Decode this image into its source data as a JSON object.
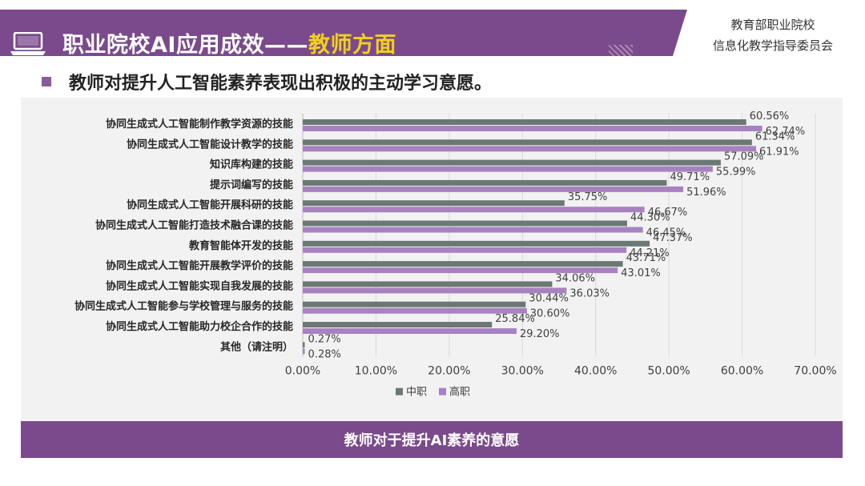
{
  "header": {
    "title_prefix": "职业院校AI应用成效——",
    "title_highlight": "教师方面",
    "org_line1": "教育部职业院校",
    "org_line2": "信息化教学指导委员会"
  },
  "subtitle": "教师对提升人工智能素养表现出积极的主动学习意愿。",
  "footer": "教师对于提升AI素养的意愿",
  "colors": {
    "primary": "#7a4a8c",
    "highlight": "#f2d01b",
    "series1": "#6b7874",
    "series2": "#a882c0"
  },
  "chart_data": {
    "type": "bar",
    "orientation": "horizontal",
    "categories": [
      "协同生成式人工智能制作教学资源的技能",
      "协同生成式人工智能设计教学的技能",
      "知识库构建的技能",
      "提示词编写的技能",
      "协同生成式人工智能开展科研的技能",
      "协同生成式人工智能打造技术融合课的技能",
      "教育智能体开发的技能",
      "协同生成式人工智能开展教学评价的技能",
      "协同生成式人工智能实现自我发展的技能",
      "协同生成式人工智能参与学校管理与服务的技能",
      "协同生成式人工智能助力校企合作的技能",
      "其他（请注明）"
    ],
    "series": [
      {
        "name": "中职",
        "values": [
          60.56,
          61.34,
          57.09,
          49.71,
          35.75,
          44.3,
          47.37,
          43.71,
          34.06,
          30.44,
          25.84,
          0.27
        ],
        "labels": [
          "60.56%",
          "61.34%",
          "57.09%",
          "49.71%",
          "35.75%",
          "44.30%",
          "47.37%",
          "43.71%",
          "34.06%",
          "30.44%",
          "25.84%",
          "0.27%"
        ]
      },
      {
        "name": "高职",
        "values": [
          62.74,
          61.91,
          55.99,
          51.96,
          46.67,
          46.45,
          44.21,
          43.01,
          36.03,
          30.6,
          29.2,
          0.28
        ],
        "labels": [
          "62.74%",
          "61.91%",
          "55.99%",
          "51.96%",
          "46.67%",
          "46.45%",
          "44.21%",
          "43.01%",
          "36.03%",
          "30.60%",
          "29.20%",
          "0.28%"
        ]
      }
    ],
    "x_ticks": [
      "0.00%",
      "10.00%",
      "20.00%",
      "30.00%",
      "40.00%",
      "50.00%",
      "60.00%",
      "70.00%"
    ],
    "xlim": [
      0,
      70
    ],
    "grid": true,
    "legend_position": "bottom"
  }
}
